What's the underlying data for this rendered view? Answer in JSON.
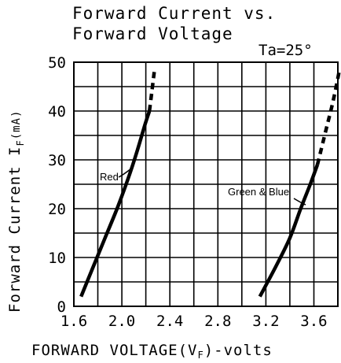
{
  "chart_data": {
    "type": "line",
    "title": [
      "Forward Current vs.",
      "Forward Voltage"
    ],
    "condition": "Ta=25°",
    "xlabel": "FORWARD VOLTAGE(VF)-volts",
    "ylabel": "Forward Current IF(mA)",
    "xlim": [
      1.6,
      3.8
    ],
    "ylim": [
      0,
      50
    ],
    "x_ticks": [
      "1.6",
      "2.0",
      "2.4",
      "2.8",
      "3.2",
      "3.6"
    ],
    "x_tick_values": [
      1.6,
      2.0,
      2.4,
      2.8,
      3.2,
      3.6
    ],
    "y_ticks": [
      "0",
      "10",
      "20",
      "30",
      "40",
      "50"
    ],
    "y_tick_values": [
      0,
      10,
      20,
      30,
      40,
      50
    ],
    "grid": true,
    "series": [
      {
        "name": "Red",
        "solid": [
          [
            1.66,
            2
          ],
          [
            1.76,
            8
          ],
          [
            1.86,
            14
          ],
          [
            1.96,
            20
          ],
          [
            2.05,
            26
          ],
          [
            2.13,
            32
          ],
          [
            2.19,
            37
          ],
          [
            2.23,
            40
          ]
        ],
        "extrapolated": [
          [
            2.23,
            40
          ],
          [
            2.25,
            44
          ],
          [
            2.27,
            48
          ]
        ]
      },
      {
        "name": "Green & Blue",
        "solid": [
          [
            3.15,
            2
          ],
          [
            3.28,
            8
          ],
          [
            3.4,
            14
          ],
          [
            3.49,
            20
          ],
          [
            3.57,
            25
          ],
          [
            3.63,
            29
          ]
        ],
        "extrapolated": [
          [
            3.63,
            29
          ],
          [
            3.7,
            36
          ],
          [
            3.76,
            42
          ],
          [
            3.81,
            48
          ]
        ]
      }
    ]
  }
}
